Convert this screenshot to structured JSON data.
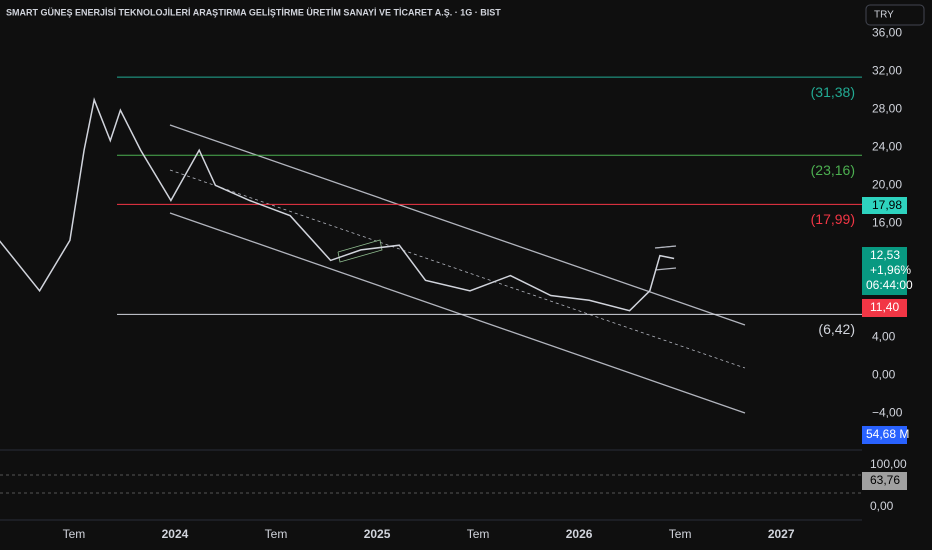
{
  "header": {
    "title": "SMART GÜNEŞ ENERJİSİ TEKNOLOJİLERİ ARAŞTIRMA GELİŞTİRME ÜRETİM SANAYİ VE TİCARET A.Ş. · 1G · BIST",
    "currency": "TRY"
  },
  "chart_data": {
    "type": "line",
    "color": "#d1d4dc",
    "x": [
      2023.13,
      2023.33,
      2023.48,
      2023.55,
      2023.6,
      2023.68,
      2023.73,
      2023.83,
      2023.98,
      2024.12,
      2024.2,
      2024.37,
      2024.57,
      2024.77,
      2024.92,
      2025.11,
      2025.24,
      2025.46,
      2025.66,
      2025.86,
      2026.05,
      2026.25,
      2026.35,
      2026.4,
      2026.47
    ],
    "values": [
      14.2,
      8.9,
      14.2,
      23.7,
      29,
      24.7,
      27.9,
      23.7,
      18.4,
      23.7,
      20,
      18.4,
      16.8,
      12.1,
      13.2,
      13.7,
      10,
      8.9,
      10.5,
      8.4,
      7.9,
      6.8,
      8.9,
      12.6,
      12.3
    ],
    "xlim": [
      2023.134,
      2027.4
    ],
    "xticks": [
      {
        "value": 2023.5,
        "label": "Tem"
      },
      2024,
      {
        "value": 2024.5,
        "label": "Tem"
      },
      2025,
      {
        "value": 2025.5,
        "label": "Tem"
      },
      2026,
      {
        "value": 2026.5,
        "label": "Tem"
      },
      2027
    ],
    "ylim": [
      -4.7,
      39.5
    ],
    "yticks": [
      {
        "value": 36,
        "label": "36,00"
      },
      {
        "value": 32,
        "label": "32,00"
      },
      {
        "value": 28,
        "label": "28,00"
      },
      {
        "value": 24,
        "label": "24,00"
      },
      {
        "value": 20,
        "label": "20,00"
      },
      {
        "value": 16,
        "label": "16,00"
      },
      {
        "value": 4,
        "label": "4,00"
      },
      {
        "value": 0,
        "label": "0,00"
      },
      {
        "value": -4,
        "label": "−4,00"
      }
    ],
    "levels": [
      {
        "value": 31.38,
        "label": "(31,38)",
        "color": "#22ab94"
      },
      {
        "value": 23.16,
        "label": "(23,16)",
        "color": "#4caf50"
      },
      {
        "value": 17.99,
        "label": "(17,99)",
        "color": "#f23645"
      },
      {
        "value": 6.42,
        "label": "(6,42)",
        "color": "#d1d4dc"
      }
    ]
  },
  "badges": {
    "level": "17,98",
    "price": "12,53",
    "change": "+1,96%",
    "countdown": "06:44:00",
    "low": "11,40",
    "volume": "54,68 M",
    "rsi": "63,76",
    "rsi_top": "100,00",
    "rsi_bottom": "0,00"
  }
}
